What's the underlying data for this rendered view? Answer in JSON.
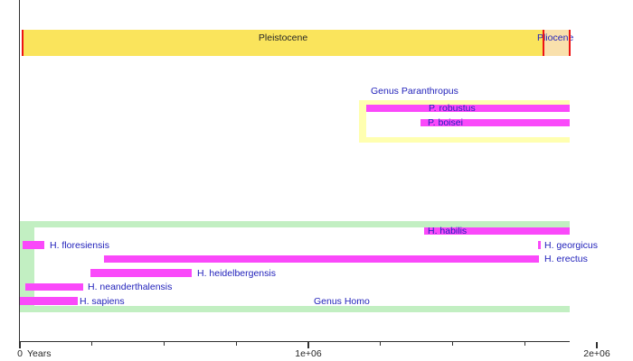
{
  "palette": {
    "pleistocene": "#FAE45C",
    "pliocene": "#F9E0AC",
    "bar-magenta": "#FA49FA",
    "paranthropus-frame": "#FFFFB0",
    "homo-frame": "#C2EFC2",
    "label-blue": "#2222BB",
    "mark-red": "#EE1414",
    "axis": "#303030",
    "text-dark": "#262626"
  },
  "chart_data": {
    "type": "bar",
    "subtype": "timeline-range-gantt",
    "title": "",
    "xlabel": "Years",
    "ylabel": "",
    "xlim": [
      0,
      2000000
    ],
    "clip_max": 1905000,
    "grid": false,
    "x_unit": "years before present, increasing to the right",
    "axis_ticks": {
      "minor_step": 250000,
      "major": [
        {
          "t": 0,
          "label": "0"
        },
        {
          "t": 1000000,
          "label": "1e+06"
        },
        {
          "t": 2000000,
          "label": "2e+06"
        }
      ]
    },
    "epochs": [
      {
        "label": "Pleistocene",
        "start": 10000,
        "end": 1815000,
        "color_key": "pleistocene"
      },
      {
        "label": "Pliocene",
        "start": 1815000,
        "end": 1905000,
        "color_key": "pliocene"
      }
    ],
    "groups": [
      {
        "label": "Genus Paranthropus",
        "start": 1175000,
        "end": 1905000,
        "color_key": "paranthropus-frame",
        "species": [
          {
            "label": "P. robustus",
            "start": 1200000,
            "end": 1905000
          },
          {
            "label": "P. boisei",
            "start": 1390000,
            "end": 1905000
          }
        ]
      },
      {
        "label": "Genus Homo",
        "start": 0,
        "end": 1905000,
        "color_key": "homo-frame",
        "species": [
          {
            "label": "H. habilis",
            "start": 1400000,
            "end": 1905000
          },
          {
            "label": "H. floresiensis",
            "start": 10000,
            "end": 85000
          },
          {
            "label": "H. georgicus",
            "start": 1795000,
            "end": 1805000
          },
          {
            "label": "H. erectus",
            "start": 290000,
            "end": 1800000
          },
          {
            "label": "H. heidelbergensis",
            "start": 245000,
            "end": 595000
          },
          {
            "label": "H. neanderthalensis",
            "start": 20000,
            "end": 220000
          },
          {
            "label": "H. sapiens",
            "start": 0,
            "end": 200000
          }
        ]
      }
    ]
  }
}
